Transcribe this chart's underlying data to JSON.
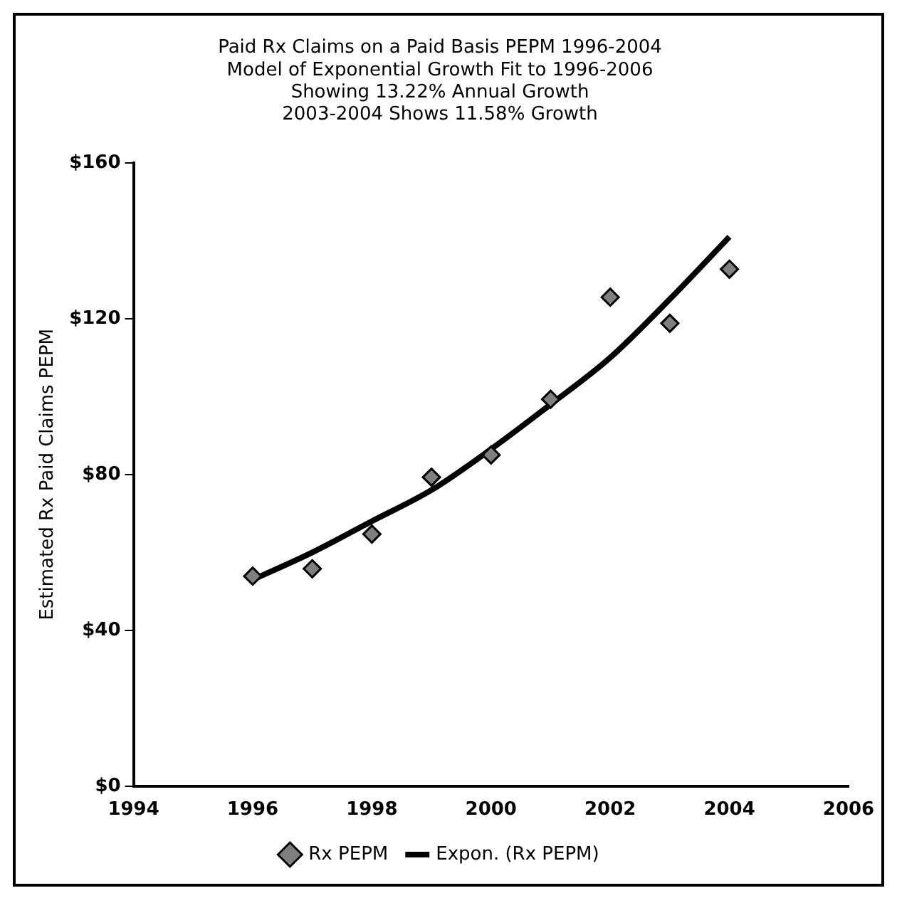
{
  "chart_data": {
    "type": "scatter",
    "title": [
      "Paid Rx Claims on a Paid Basis PEPM 1996-2004",
      "Model of Exponential Growth Fit to 1996-2006",
      "Showing 13.22% Annual Growth",
      "2003-2004 Shows 11.58% Growth"
    ],
    "ylabel": "Estimated Rx Paid Claims PEPM",
    "x": [
      1996,
      1997,
      1998,
      1999,
      2000,
      2001,
      2002,
      2003,
      2004
    ],
    "series": [
      {
        "name": "Rx PEPM",
        "color": "#7f7f7f",
        "marker": "diamond",
        "values": [
          53.9,
          55.8,
          64.7,
          79.3,
          85.0,
          99.3,
          125.5,
          118.8,
          132.7
        ]
      },
      {
        "name": "Expon. (Rx PEPM)",
        "type": "line",
        "color": "#000000",
        "marker": "none",
        "line_style": "solid",
        "values": [
          53,
          60,
          68,
          76,
          86.5,
          98,
          110,
          125,
          141
        ]
      }
    ],
    "xlim": [
      1994,
      2006
    ],
    "xticks": [
      1994,
      1996,
      1998,
      2000,
      2002,
      2004,
      2006
    ],
    "ylim": [
      0,
      160
    ],
    "yticks": [
      {
        "value": 0,
        "label": "$0"
      },
      {
        "value": 40,
        "label": "$40"
      },
      {
        "value": 80,
        "label": "$80"
      },
      {
        "value": 120,
        "label": "$120"
      },
      {
        "value": 160,
        "label": "$160"
      }
    ],
    "grid": false,
    "legend": "bottom"
  }
}
